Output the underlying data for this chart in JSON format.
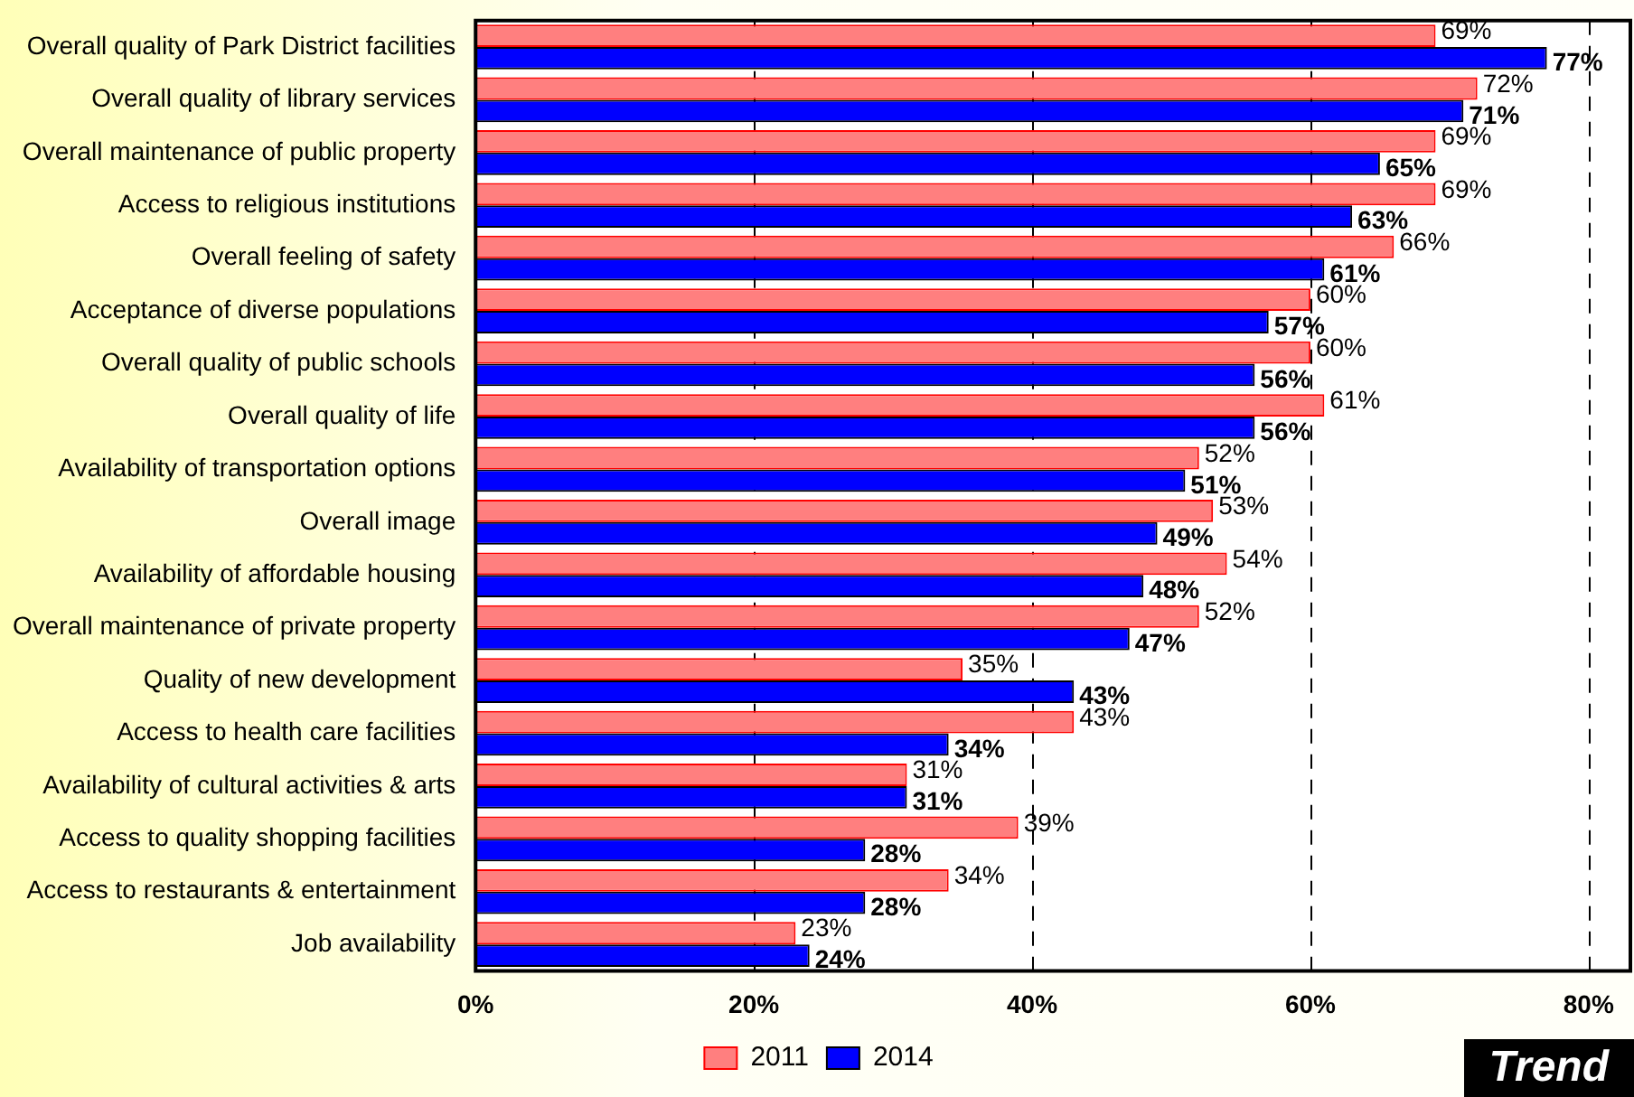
{
  "chart_data": {
    "type": "bar",
    "orientation": "horizontal",
    "categories": [
      "Overall quality of Park District facilities",
      "Overall quality of library services",
      "Overall maintenance of public property",
      "Access to religious institutions",
      "Overall feeling of safety",
      "Acceptance of diverse populations",
      "Overall quality of public schools",
      "Overall quality of life",
      "Availability of transportation options",
      "Overall image",
      "Availability of affordable housing",
      "Overall maintenance of private property",
      "Quality of new development",
      "Access to health care facilities",
      "Availability of cultural activities & arts",
      "Access to quality shopping facilities",
      "Access to restaurants & entertainment",
      "Job availability"
    ],
    "series": [
      {
        "name": "2011",
        "color": "#ff7f7f",
        "values": [
          69,
          72,
          69,
          69,
          66,
          60,
          60,
          61,
          52,
          53,
          54,
          52,
          35,
          43,
          31,
          39,
          34,
          23
        ],
        "value_labels": [
          "69%",
          "72%",
          "69%",
          "69%",
          "66%",
          "60%",
          "60%",
          "61%",
          "52%",
          "53%",
          "54%",
          "52%",
          "35%",
          "43%",
          "31%",
          "39%",
          "34%",
          "23%"
        ]
      },
      {
        "name": "2014",
        "color": "#0000ff",
        "values": [
          77,
          71,
          65,
          63,
          61,
          57,
          56,
          56,
          51,
          49,
          48,
          47,
          43,
          34,
          31,
          28,
          28,
          24
        ],
        "value_labels": [
          "77%",
          "71%",
          "65%",
          "63%",
          "61%",
          "57%",
          "56%",
          "56%",
          "51%",
          "49%",
          "48%",
          "47%",
          "43%",
          "34%",
          "31%",
          "28%",
          "28%",
          "24%"
        ]
      }
    ],
    "xlim": [
      0,
      83
    ],
    "xticks": [
      {
        "value": 0,
        "label": "0%"
      },
      {
        "value": 20,
        "label": "20%"
      },
      {
        "value": 40,
        "label": "40%"
      },
      {
        "value": 60,
        "label": "60%"
      },
      {
        "value": 80,
        "label": "80%"
      }
    ],
    "grid": "x",
    "legend": "bottom",
    "annotations": [
      "Trend"
    ]
  }
}
